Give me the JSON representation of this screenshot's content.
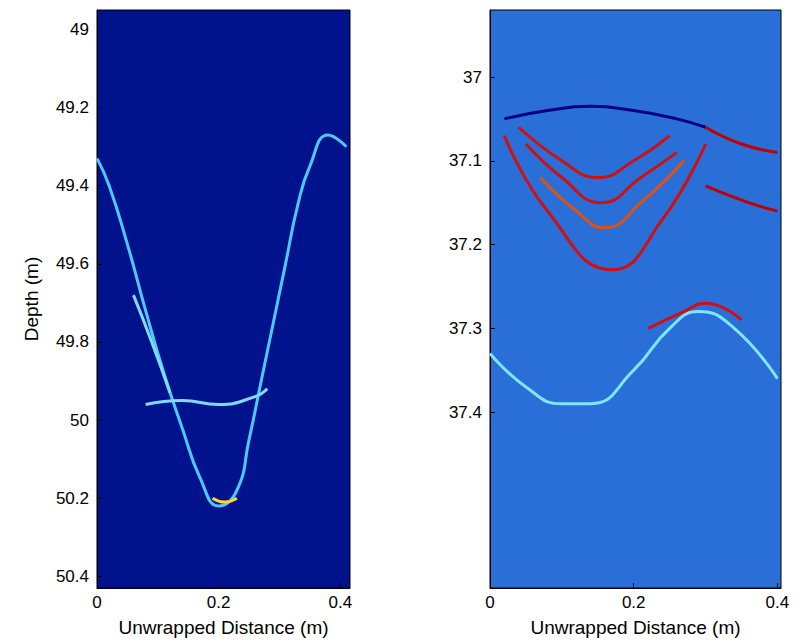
{
  "chart_data": [
    {
      "type": "line",
      "x_label": "Unwrapped Distance (m)",
      "y_label": "Depth (m)",
      "xlim": [
        0,
        0.416
      ],
      "ylim": [
        48.95,
        50.43
      ],
      "xticks": [
        0,
        0.2,
        0.4
      ],
      "yticks": [
        49,
        49.2,
        49.4,
        49.6,
        49.8,
        50,
        50.2,
        50.4
      ],
      "grid": false,
      "series": [
        {
          "color": "#4fc8ff",
          "x": [
            0,
            0.02,
            0.05,
            0.08,
            0.11,
            0.14,
            0.17,
            0.2,
            0.23,
            0.25,
            0.27,
            0.29,
            0.31,
            0.33,
            0.35,
            0.38,
            0.41
          ],
          "values": [
            49.33,
            49.4,
            49.55,
            49.72,
            49.88,
            50.02,
            50.15,
            50.22,
            50.18,
            50.05,
            49.9,
            49.75,
            49.6,
            49.45,
            49.35,
            49.27,
            49.3
          ]
        },
        {
          "color": "#7fdcff",
          "x": [
            0.08,
            0.14,
            0.2,
            0.26,
            0.28
          ],
          "values": [
            49.96,
            49.95,
            49.96,
            49.94,
            49.92
          ]
        },
        {
          "color": "#7fdcff",
          "x": [
            0.06,
            0.09,
            0.12
          ],
          "values": [
            49.68,
            49.8,
            49.93
          ]
        },
        {
          "color": "#ffd23f",
          "x": [
            0.19,
            0.21,
            0.23
          ],
          "values": [
            50.2,
            50.21,
            50.2
          ]
        }
      ]
    },
    {
      "type": "line",
      "x_label": "Unwrapped Distance (m)",
      "xlim": [
        0,
        0.405
      ],
      "ylim": [
        36.92,
        37.61
      ],
      "xticks": [
        0,
        0.2,
        0.4
      ],
      "yticks": [
        37,
        37.1,
        37.2,
        37.3,
        37.4
      ],
      "grid": false,
      "series": [
        {
          "color": "#000080",
          "x": [
            0.02,
            0.08,
            0.14,
            0.2,
            0.26,
            0.3
          ],
          "values": [
            37.05,
            37.04,
            37.035,
            37.04,
            37.05,
            37.06
          ]
        },
        {
          "color": "#d01010",
          "x": [
            0.04,
            0.1,
            0.15,
            0.2,
            0.25
          ],
          "values": [
            37.06,
            37.1,
            37.12,
            37.1,
            37.07
          ]
        },
        {
          "color": "#d01010",
          "x": [
            0.05,
            0.1,
            0.155,
            0.21,
            0.26
          ],
          "values": [
            37.08,
            37.12,
            37.15,
            37.12,
            37.09
          ]
        },
        {
          "color": "#e05010",
          "x": [
            0.07,
            0.12,
            0.16,
            0.21,
            0.27
          ],
          "values": [
            37.12,
            37.16,
            37.18,
            37.15,
            37.1
          ]
        },
        {
          "color": "#d01010",
          "x": [
            0.02,
            0.08,
            0.17,
            0.24,
            0.3
          ],
          "values": [
            37.07,
            37.16,
            37.23,
            37.17,
            37.08
          ]
        },
        {
          "color": "#c00000",
          "x": [
            0.3,
            0.35,
            0.4
          ],
          "values": [
            37.06,
            37.08,
            37.09
          ]
        },
        {
          "color": "#c00000",
          "x": [
            0.3,
            0.36,
            0.4
          ],
          "values": [
            37.13,
            37.15,
            37.16
          ]
        },
        {
          "color": "#7fe6ff",
          "x": [
            0,
            0.05,
            0.1,
            0.14,
            0.2,
            0.25,
            0.29,
            0.34,
            0.4
          ],
          "values": [
            37.33,
            37.37,
            37.39,
            37.39,
            37.35,
            37.3,
            37.28,
            37.3,
            37.36
          ]
        },
        {
          "color": "#d01010",
          "x": [
            0.22,
            0.27,
            0.3,
            0.35
          ],
          "values": [
            37.3,
            37.28,
            37.27,
            37.29
          ]
        }
      ]
    }
  ]
}
